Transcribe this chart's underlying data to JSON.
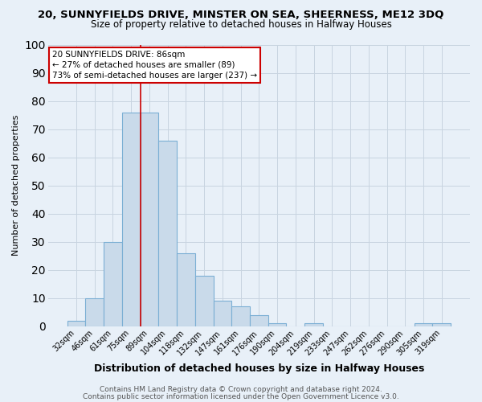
{
  "title": "20, SUNNYFIELDS DRIVE, MINSTER ON SEA, SHEERNESS, ME12 3DQ",
  "subtitle": "Size of property relative to detached houses in Halfway Houses",
  "xlabel": "Distribution of detached houses by size in Halfway Houses",
  "ylabel": "Number of detached properties",
  "categories": [
    "32sqm",
    "46sqm",
    "61sqm",
    "75sqm",
    "89sqm",
    "104sqm",
    "118sqm",
    "132sqm",
    "147sqm",
    "161sqm",
    "176sqm",
    "190sqm",
    "204sqm",
    "219sqm",
    "233sqm",
    "247sqm",
    "262sqm",
    "276sqm",
    "290sqm",
    "305sqm",
    "319sqm"
  ],
  "values": [
    2,
    10,
    30,
    76,
    76,
    66,
    26,
    18,
    9,
    7,
    4,
    1,
    0,
    1,
    0,
    0,
    0,
    0,
    0,
    1,
    1
  ],
  "bar_color": "#c9daea",
  "bar_edgecolor": "#7bafd4",
  "bar_linewidth": 0.8,
  "redline_color": "#cc0000",
  "redline_x": 3.5,
  "ylim": [
    0,
    100
  ],
  "yticks": [
    0,
    10,
    20,
    30,
    40,
    50,
    60,
    70,
    80,
    90,
    100
  ],
  "annotation_text": "20 SUNNYFIELDS DRIVE: 86sqm\n← 27% of detached houses are smaller (89)\n73% of semi-detached houses are larger (237) →",
  "annotation_box_facecolor": "#ffffff",
  "annotation_box_edgecolor": "#cc0000",
  "footnote1": "Contains HM Land Registry data © Crown copyright and database right 2024.",
  "footnote2": "Contains public sector information licensed under the Open Government Licence v3.0.",
  "grid_color": "#c8d4e0",
  "background_color": "#e8f0f8",
  "title_fontsize": 9.5,
  "subtitle_fontsize": 8.5,
  "xlabel_fontsize": 9,
  "ylabel_fontsize": 8,
  "tick_fontsize": 7,
  "annotation_fontsize": 7.5,
  "footnote_fontsize": 6.5,
  "figsize": [
    6.0,
    5.0
  ],
  "dpi": 100
}
